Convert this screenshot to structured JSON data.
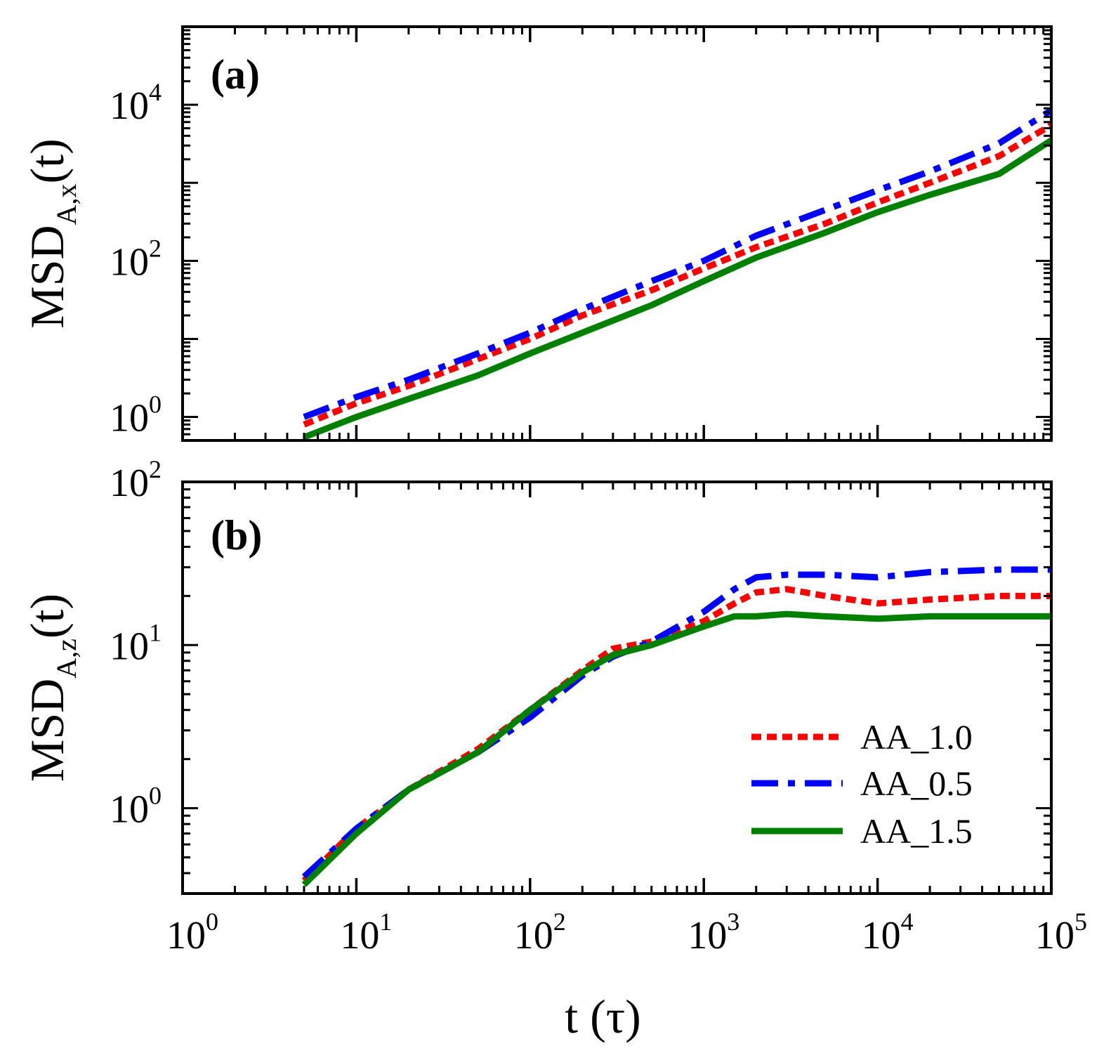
{
  "chart_data": [
    {
      "panel": "(a)",
      "type": "line",
      "xscale": "log",
      "yscale": "log",
      "xlim": [
        1,
        100000
      ],
      "ylim": [
        0.5,
        100000
      ],
      "ylabel": {
        "main": "MSD",
        "sub": "A,x",
        "suffix": "(t)"
      },
      "xlabel": "",
      "x_ticks": [
        1,
        10,
        100,
        1000,
        10000,
        100000
      ],
      "y_ticks": [
        {
          "value": 1,
          "base": "10",
          "exp": "0"
        },
        {
          "value": 100,
          "base": "10",
          "exp": "2"
        },
        {
          "value": 10000,
          "base": "10",
          "exp": "4"
        }
      ],
      "series": [
        {
          "name": "AA_1.0",
          "color": "#ff0000",
          "style": "dotted",
          "x": [
            5,
            10,
            20,
            50,
            100,
            200,
            500,
            1000,
            2000,
            5000,
            10000,
            20000,
            50000,
            100000
          ],
          "y": [
            0.8,
            1.5,
            2.5,
            5.5,
            10,
            20,
            42,
            80,
            150,
            300,
            560,
            1000,
            2200,
            5500
          ]
        },
        {
          "name": "AA_0.5",
          "color": "#0000ff",
          "style": "dashed",
          "x": [
            5,
            10,
            20,
            50,
            100,
            200,
            500,
            1000,
            2000,
            5000,
            10000,
            20000,
            50000,
            100000
          ],
          "y": [
            1.0,
            1.8,
            3.0,
            6.5,
            12,
            24,
            55,
            100,
            210,
            450,
            800,
            1400,
            3200,
            8500
          ]
        },
        {
          "name": "AA_1.5",
          "color": "#008000",
          "style": "solid",
          "x": [
            5,
            10,
            20,
            50,
            100,
            200,
            500,
            1000,
            2000,
            5000,
            10000,
            20000,
            50000,
            100000
          ],
          "y": [
            0.55,
            1.0,
            1.7,
            3.4,
            6.5,
            12,
            27,
            55,
            110,
            230,
            420,
            700,
            1300,
            3500
          ]
        }
      ]
    },
    {
      "panel": "(b)",
      "type": "line",
      "xscale": "log",
      "yscale": "log",
      "xlim": [
        1,
        100000
      ],
      "ylim": [
        0.3,
        100
      ],
      "ylabel": {
        "main": "MSD",
        "sub": "A,z",
        "suffix": "(t)"
      },
      "xlabel": "t (τ)",
      "x_ticks": [
        {
          "value": 1,
          "base": "10",
          "exp": "0"
        },
        {
          "value": 10,
          "base": "10",
          "exp": "1"
        },
        {
          "value": 100,
          "base": "10",
          "exp": "2"
        },
        {
          "value": 1000,
          "base": "10",
          "exp": "3"
        },
        {
          "value": 10000,
          "base": "10",
          "exp": "4"
        },
        {
          "value": 100000,
          "base": "10",
          "exp": "5"
        }
      ],
      "y_ticks": [
        {
          "value": 1,
          "base": "10",
          "exp": "0"
        },
        {
          "value": 10,
          "base": "10",
          "exp": "1"
        },
        {
          "value": 100,
          "base": "10",
          "exp": "2"
        }
      ],
      "legend_position": "bottom-right",
      "series": [
        {
          "name": "AA_1.0",
          "color": "#ff0000",
          "style": "dotted",
          "x": [
            5,
            10,
            20,
            50,
            100,
            200,
            300,
            500,
            1000,
            1500,
            2000,
            3000,
            5000,
            10000,
            20000,
            50000,
            100000
          ],
          "y": [
            0.36,
            0.75,
            1.3,
            2.3,
            4.0,
            7.0,
            9.5,
            10.5,
            14,
            18,
            21,
            22,
            20,
            18,
            19,
            20,
            20
          ]
        },
        {
          "name": "AA_0.5",
          "color": "#0000ff",
          "style": "dashed",
          "x": [
            5,
            10,
            20,
            50,
            100,
            200,
            300,
            500,
            1000,
            1500,
            2000,
            3000,
            5000,
            10000,
            20000,
            50000,
            100000
          ],
          "y": [
            0.38,
            0.75,
            1.3,
            2.2,
            3.6,
            6.5,
            8.5,
            10.5,
            16,
            22,
            26,
            27,
            27,
            26,
            28,
            29,
            29
          ]
        },
        {
          "name": "AA_1.5",
          "color": "#008000",
          "style": "solid",
          "x": [
            5,
            10,
            20,
            50,
            100,
            200,
            300,
            500,
            1000,
            1500,
            2000,
            3000,
            5000,
            10000,
            20000,
            50000,
            100000
          ],
          "y": [
            0.34,
            0.7,
            1.3,
            2.2,
            4.0,
            6.8,
            8.7,
            10.0,
            13,
            15,
            15,
            15.5,
            15,
            14.5,
            15,
            15,
            15
          ]
        }
      ]
    }
  ]
}
